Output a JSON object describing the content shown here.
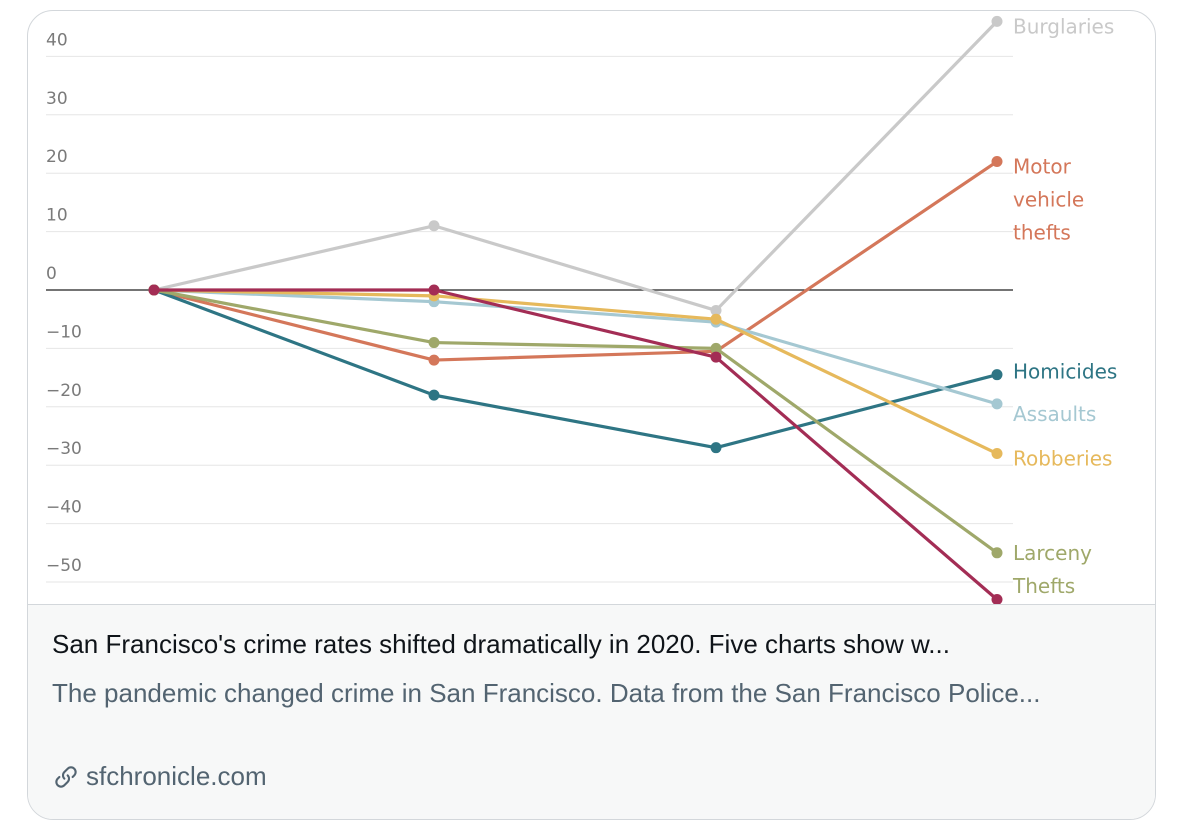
{
  "card": {
    "link": {
      "title": "San Francisco's crime rates shifted dramatically in 2020. Five charts show w...",
      "description": "The pandemic changed crime in San Francisco. Data from the San Francisco Police...",
      "domain": "sfchronicle.com",
      "domain_icon": "link-icon"
    }
  },
  "chart_data": {
    "type": "line",
    "title": "",
    "xlabel": "",
    "ylabel": "",
    "x": [
      0,
      1,
      2,
      3
    ],
    "ylim": [
      -53,
      47
    ],
    "yticks": [
      40,
      30,
      20,
      10,
      0,
      -10,
      -20,
      -30,
      -40,
      -50
    ],
    "ytick_labels": [
      "40",
      "30",
      "20",
      "10",
      "0",
      "−10",
      "−20",
      "−30",
      "−40",
      "−50"
    ],
    "grid": true,
    "zero_line": true,
    "series": [
      {
        "name": "Burglaries",
        "color": "#c9c9c9",
        "values": [
          0,
          11,
          -3.5,
          46
        ],
        "label_lines": [
          "Burglaries"
        ]
      },
      {
        "name": "Motor vehicle thefts",
        "color": "#d4775a",
        "values": [
          0,
          -12,
          -10.5,
          22
        ],
        "label_lines": [
          "Motor",
          "vehicle",
          "thefts"
        ]
      },
      {
        "name": "Homicides",
        "color": "#2e7584",
        "values": [
          0,
          -18,
          -27,
          -14.5
        ],
        "label_lines": [
          "Homicides"
        ]
      },
      {
        "name": "Assaults",
        "color": "#a5c8d2",
        "values": [
          0,
          -2,
          -5.5,
          -19.5
        ],
        "label_lines": [
          "Assaults"
        ]
      },
      {
        "name": "Robberies",
        "color": "#e6b95c",
        "values": [
          0,
          -1,
          -5,
          -28
        ],
        "label_lines": [
          "Robberies"
        ]
      },
      {
        "name": "Larceny Thefts",
        "color": "#9fa86a",
        "values": [
          0,
          -9,
          -10,
          -45
        ],
        "label_lines": [
          "Larceny",
          "Thefts"
        ]
      },
      {
        "name": "",
        "color": "#a32d55",
        "values": [
          0,
          0,
          -11.5,
          -53
        ],
        "label_lines": []
      }
    ]
  }
}
